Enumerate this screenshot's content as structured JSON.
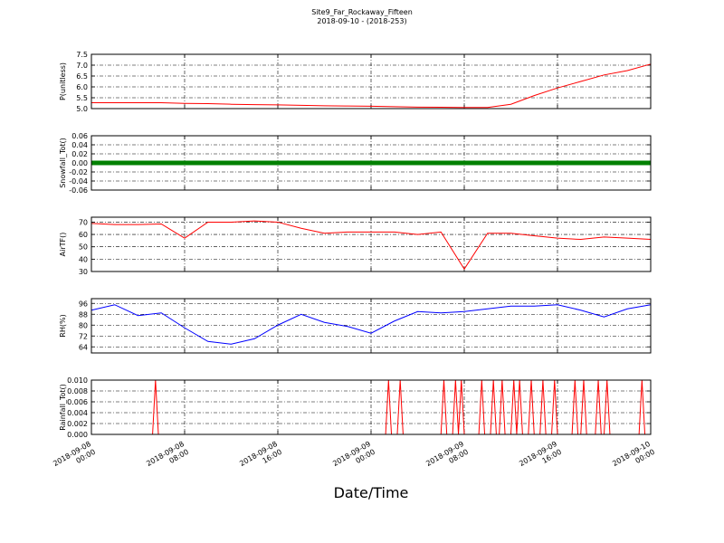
{
  "chart_data": [
    {
      "type": "line",
      "title": "Site9_Far_Rockaway_Fifteen",
      "subtitle": "2018-09-10 - (2018-253)",
      "ylabel": "P(unitless)",
      "color": "#ff0000",
      "grid": true,
      "x": [
        "2018-09-08 00:00",
        "2018-09-08 02:00",
        "2018-09-08 04:00",
        "2018-09-08 06:00",
        "2018-09-08 08:00",
        "2018-09-08 10:00",
        "2018-09-08 12:00",
        "2018-09-08 14:00",
        "2018-09-08 16:00",
        "2018-09-08 18:00",
        "2018-09-08 20:00",
        "2018-09-08 22:00",
        "2018-09-09 00:00",
        "2018-09-09 02:00",
        "2018-09-09 04:00",
        "2018-09-09 06:00",
        "2018-09-09 08:00",
        "2018-09-09 10:00",
        "2018-09-09 12:00",
        "2018-09-09 14:00",
        "2018-09-09 16:00",
        "2018-09-09 18:00",
        "2018-09-09 20:00",
        "2018-09-09 22:00",
        "2018-09-10 00:00"
      ],
      "values": [
        5.27,
        5.27,
        5.27,
        5.27,
        5.24,
        5.23,
        5.2,
        5.18,
        5.17,
        5.15,
        5.13,
        5.12,
        5.11,
        5.09,
        5.07,
        5.06,
        5.05,
        5.05,
        5.2,
        5.6,
        5.95,
        6.25,
        6.55,
        6.75,
        7.05
      ],
      "xlim": [
        "2018-09-08 00:00",
        "2018-09-10 00:00"
      ],
      "xticks": [
        "2018-09-08 00:00",
        "2018-09-08 08:00",
        "2018-09-08 16:00",
        "2018-09-09 00:00",
        "2018-09-09 08:00",
        "2018-09-09 16:00",
        "2018-09-10 00:00"
      ],
      "ylim": [
        5.0,
        7.5
      ],
      "yticks": [
        {
          "value": 5,
          "label": "5.0"
        },
        5.5,
        {
          "value": 6,
          "label": "6.0"
        },
        6.5,
        {
          "value": 7,
          "label": "7.0"
        },
        7.5
      ]
    },
    {
      "type": "line",
      "ylabel": "Snowfall_Tot()",
      "color": "#008000",
      "grid": true,
      "x": [
        "2018-09-08 00:00",
        "2018-09-08 02:00",
        "2018-09-08 04:00",
        "2018-09-08 06:00",
        "2018-09-08 08:00",
        "2018-09-08 10:00",
        "2018-09-08 12:00",
        "2018-09-08 14:00",
        "2018-09-08 16:00",
        "2018-09-08 18:00",
        "2018-09-08 20:00",
        "2018-09-08 22:00",
        "2018-09-09 00:00",
        "2018-09-09 02:00",
        "2018-09-09 04:00",
        "2018-09-09 06:00",
        "2018-09-09 08:00",
        "2018-09-09 10:00",
        "2018-09-09 12:00",
        "2018-09-09 14:00",
        "2018-09-09 16:00",
        "2018-09-09 18:00",
        "2018-09-09 20:00",
        "2018-09-09 22:00",
        "2018-09-10 00:00"
      ],
      "values": [
        0,
        0,
        0,
        0,
        0,
        0,
        0,
        0,
        0,
        0,
        0,
        0,
        0,
        0,
        0,
        0,
        0,
        0,
        0,
        0,
        0,
        0,
        0,
        0,
        0
      ],
      "xlim": [
        "2018-09-08 00:00",
        "2018-09-10 00:00"
      ],
      "xticks": [
        "2018-09-08 00:00",
        "2018-09-08 08:00",
        "2018-09-08 16:00",
        "2018-09-09 00:00",
        "2018-09-09 08:00",
        "2018-09-09 16:00",
        "2018-09-10 00:00"
      ],
      "ylim": [
        -0.06,
        0.06
      ],
      "yticks": [
        -0.06,
        -0.04,
        -0.02,
        {
          "value": 0,
          "label": "0.00"
        },
        0.02,
        0.04,
        0.06
      ]
    },
    {
      "type": "line",
      "ylabel": "AirTF()",
      "color": "#ff0000",
      "grid": true,
      "x": [
        "2018-09-08 00:00",
        "2018-09-08 02:00",
        "2018-09-08 04:00",
        "2018-09-08 06:00",
        "2018-09-08 08:00",
        "2018-09-08 10:00",
        "2018-09-08 12:00",
        "2018-09-08 14:00",
        "2018-09-08 16:00",
        "2018-09-08 18:00",
        "2018-09-08 20:00",
        "2018-09-08 22:00",
        "2018-09-09 00:00",
        "2018-09-09 02:00",
        "2018-09-09 04:00",
        "2018-09-09 06:00",
        "2018-09-09 08:00",
        "2018-09-09 10:00",
        "2018-09-09 12:00",
        "2018-09-09 14:00",
        "2018-09-09 16:00",
        "2018-09-09 18:00",
        "2018-09-09 20:00",
        "2018-09-09 22:00",
        "2018-09-10 00:00"
      ],
      "values": [
        69,
        68,
        68,
        68.5,
        57,
        70,
        70,
        71,
        70,
        65,
        61,
        62,
        62,
        62,
        60,
        62,
        32,
        61,
        61,
        59,
        57,
        56,
        58,
        57,
        56
      ],
      "xlim": [
        "2018-09-08 00:00",
        "2018-09-10 00:00"
      ],
      "xticks": [
        "2018-09-08 00:00",
        "2018-09-08 08:00",
        "2018-09-08 16:00",
        "2018-09-09 00:00",
        "2018-09-09 08:00",
        "2018-09-09 16:00",
        "2018-09-10 00:00"
      ],
      "ylim": [
        30,
        74
      ],
      "yticks": [
        30,
        40,
        50,
        60,
        70
      ]
    },
    {
      "type": "line",
      "ylabel": "RH(%)",
      "color": "#0000ff",
      "grid": true,
      "x": [
        "2018-09-08 00:00",
        "2018-09-08 02:00",
        "2018-09-08 04:00",
        "2018-09-08 06:00",
        "2018-09-08 08:00",
        "2018-09-08 10:00",
        "2018-09-08 12:00",
        "2018-09-08 14:00",
        "2018-09-08 16:00",
        "2018-09-08 18:00",
        "2018-09-08 20:00",
        "2018-09-08 22:00",
        "2018-09-09 00:00",
        "2018-09-09 02:00",
        "2018-09-09 04:00",
        "2018-09-09 06:00",
        "2018-09-09 08:00",
        "2018-09-09 10:00",
        "2018-09-09 12:00",
        "2018-09-09 14:00",
        "2018-09-09 16:00",
        "2018-09-09 18:00",
        "2018-09-09 20:00",
        "2018-09-09 22:00",
        "2018-09-10 00:00"
      ],
      "values": [
        91,
        95,
        87,
        89,
        78,
        68,
        66,
        70,
        80,
        88,
        82,
        79,
        74,
        83,
        90,
        89,
        90,
        92,
        94,
        94,
        95,
        91,
        86,
        92,
        95
      ],
      "xlim": [
        "2018-09-08 00:00",
        "2018-09-10 00:00"
      ],
      "xticks": [
        "2018-09-08 00:00",
        "2018-09-08 08:00",
        "2018-09-08 16:00",
        "2018-09-09 00:00",
        "2018-09-09 08:00",
        "2018-09-09 16:00",
        "2018-09-10 00:00"
      ],
      "ylim": [
        59.5,
        99.5
      ],
      "yticks": [
        64,
        72,
        80,
        88,
        96
      ]
    },
    {
      "type": "line",
      "ylabel": "Rainfall_Tot()",
      "xlabel": "Date/Time",
      "color": "#ff0000",
      "grid": true,
      "x": [
        "2018-09-08 00:00",
        "2018-09-08 05:15",
        "2018-09-08 05:30",
        "2018-09-08 05:45",
        "2018-09-09 01:15",
        "2018-09-09 01:30",
        "2018-09-09 01:45",
        "2018-09-09 02:15",
        "2018-09-09 02:30",
        "2018-09-09 02:45",
        "2018-09-09 06:00",
        "2018-09-09 06:15",
        "2018-09-09 06:30",
        "2018-09-09 07:00",
        "2018-09-09 07:15",
        "2018-09-09 07:30",
        "2018-09-09 07:45",
        "2018-09-09 08:00",
        "2018-09-09 09:15",
        "2018-09-09 09:30",
        "2018-09-09 09:45",
        "2018-09-09 10:15",
        "2018-09-09 10:30",
        "2018-09-09 10:45",
        "2018-09-09 11:00",
        "2018-09-09 11:15",
        "2018-09-09 11:30",
        "2018-09-09 12:00",
        "2018-09-09 12:15",
        "2018-09-09 12:30",
        "2018-09-09 12:45",
        "2018-09-09 13:00",
        "2018-09-09 13:30",
        "2018-09-09 13:45",
        "2018-09-09 14:00",
        "2018-09-09 14:30",
        "2018-09-09 14:45",
        "2018-09-09 15:00",
        "2018-09-09 15:30",
        "2018-09-09 15:45",
        "2018-09-09 16:00",
        "2018-09-09 17:15",
        "2018-09-09 17:30",
        "2018-09-09 17:45",
        "2018-09-09 18:00",
        "2018-09-09 18:15",
        "2018-09-09 18:30",
        "2018-09-09 19:15",
        "2018-09-09 19:30",
        "2018-09-09 19:45",
        "2018-09-09 20:00",
        "2018-09-09 20:15",
        "2018-09-09 20:30",
        "2018-09-09 23:00",
        "2018-09-09 23:15",
        "2018-09-09 23:30",
        "2018-09-10 00:00"
      ],
      "values": [
        0,
        0,
        0.01,
        0,
        0,
        0.01,
        0,
        0,
        0.01,
        0,
        0,
        0.01,
        0,
        0,
        0.01,
        0,
        0.01,
        0,
        0,
        0.01,
        0,
        0,
        0.01,
        0,
        0,
        0.01,
        0,
        0,
        0.01,
        0,
        0.01,
        0,
        0,
        0.01,
        0,
        0,
        0.01,
        0,
        0,
        0.01,
        0,
        0,
        0.01,
        0,
        0,
        0.01,
        0,
        0,
        0.01,
        0,
        0,
        0.01,
        0,
        0,
        0.01,
        0,
        0
      ],
      "xlim": [
        "2018-09-08 00:00",
        "2018-09-10 00:00"
      ],
      "xticks": [
        "2018-09-08 00:00",
        "2018-09-08 08:00",
        "2018-09-08 16:00",
        "2018-09-09 00:00",
        "2018-09-09 08:00",
        "2018-09-09 16:00",
        "2018-09-10 00:00"
      ],
      "ylim": [
        0,
        0.01
      ],
      "yticks": [
        {
          "value": 0,
          "label": "0.000"
        },
        {
          "value": 0.002,
          "label": "0.002"
        },
        {
          "value": 0.004,
          "label": "0.004"
        },
        {
          "value": 0.006,
          "label": "0.006"
        },
        {
          "value": 0.008,
          "label": "0.008"
        },
        {
          "value": 0.01,
          "label": "0.010"
        }
      ]
    }
  ]
}
